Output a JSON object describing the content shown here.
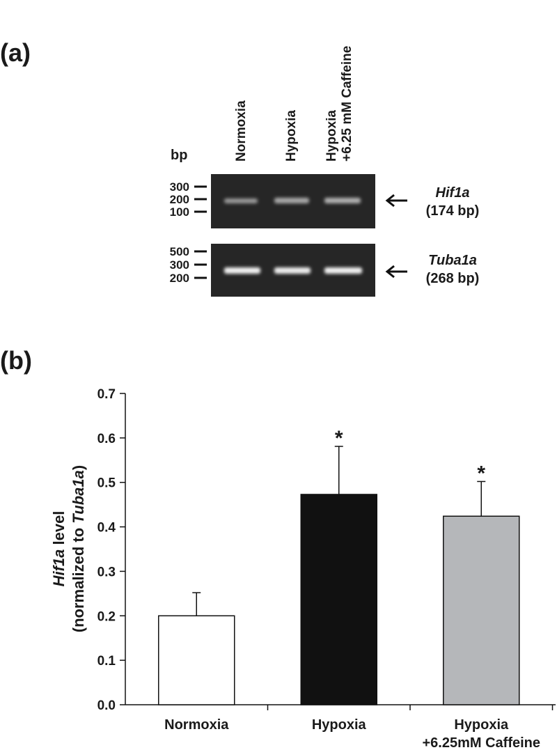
{
  "panel_a": {
    "label": "(a)",
    "unit": "bp",
    "lanes": [
      [
        "Normoxia"
      ],
      [
        "Hypoxia"
      ],
      [
        "Hypoxia",
        "+6.25 mM Caffeine"
      ]
    ],
    "gels": [
      {
        "markers": [
          "300",
          "200",
          "100"
        ],
        "target": "Hif1a",
        "size": "(174 bp)"
      },
      {
        "markers": [
          "500",
          "300",
          "200"
        ],
        "target": "Tuba1a",
        "size": "(268 bp)"
      }
    ]
  },
  "chart_data": {
    "type": "bar",
    "panel_label": "(b)",
    "y_label": {
      "line1": [
        "Hif1a",
        " level"
      ],
      "line2": [
        "(normalized to ",
        "Tuba1a",
        ")"
      ]
    },
    "categories": [
      [
        "Normoxia"
      ],
      [
        "Hypoxia"
      ],
      [
        "Hypoxia",
        "+6.25mM Caffeine"
      ]
    ],
    "values": [
      0.2,
      0.473,
      0.424
    ],
    "errors": [
      0.052,
      0.108,
      0.078
    ],
    "markers": [
      null,
      "*",
      "*"
    ],
    "colors": [
      "#ffffff",
      "#111111",
      "#b5b7ba"
    ],
    "ylim": [
      0,
      0.7
    ],
    "yticks": [
      {
        "value": 0,
        "label": "0.0"
      },
      0.1,
      0.2,
      0.3,
      0.4,
      0.5,
      0.6,
      0.7
    ],
    "grid": false
  }
}
